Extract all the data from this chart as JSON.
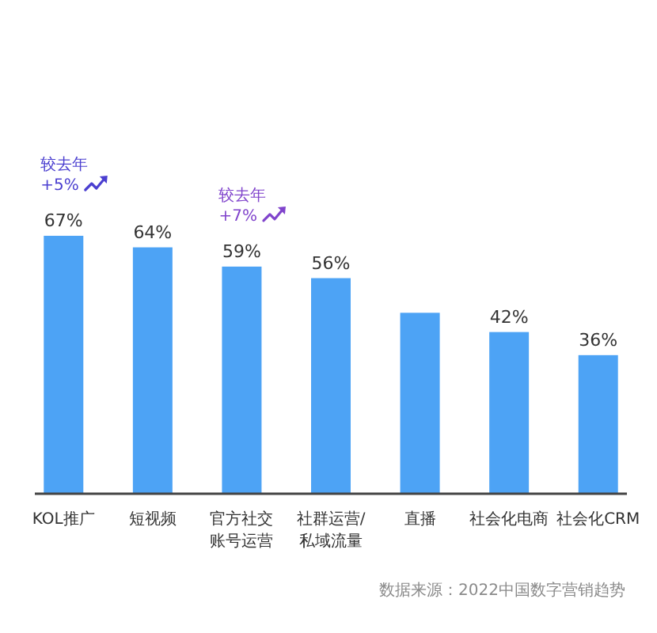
{
  "chart_data": {
    "type": "bar",
    "categories": [
      "KOL推广",
      "短视频",
      "官方社交账号运营",
      "社群运营/私域流量",
      "直播",
      "社会化电商",
      "社会化CRM"
    ],
    "values": [
      67,
      64,
      59,
      56,
      47,
      42,
      36
    ],
    "value_labels": [
      "67%",
      "64%",
      "59%",
      "56%",
      null,
      "42%",
      "36%"
    ],
    "color": "#4da3f5",
    "annotations": [
      {
        "text": "较去年 +5%",
        "x": "KOL推广",
        "y": 67
      },
      {
        "text": "较去年 +7%",
        "x": "官方社交账号运营",
        "y": 59
      },
      "数据来源：2022中国数字营销趋势"
    ]
  }
}
